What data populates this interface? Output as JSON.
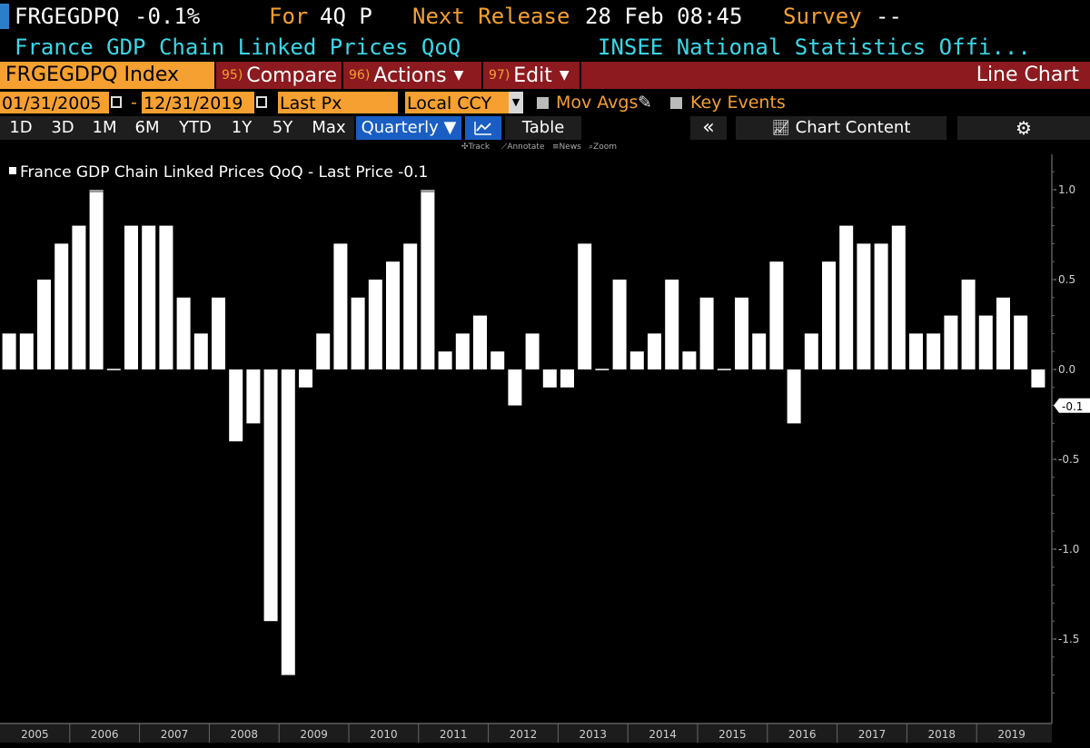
{
  "header": {
    "ticker": "FRGEGDPQ",
    "last_change": "-0.1%",
    "for_label": "For",
    "period": "4Q P",
    "next_release_label": "Next Release",
    "next_release": "28 Feb 08:45",
    "survey_label": "Survey",
    "survey_value": "--",
    "description": "France GDP Chain Linked Prices QoQ",
    "source": "INSEE National Statistics Offi..."
  },
  "toolbar": {
    "security": "FRGEGDPQ Index",
    "compare_num": "95)",
    "compare_label": "Compare",
    "actions_num": "96)",
    "actions_label": "Actions",
    "edit_num": "97)",
    "edit_label": "Edit",
    "chart_type": "Line Chart"
  },
  "date_row": {
    "start_date": "01/31/2005",
    "end_date": "12/31/2019",
    "separator": "-",
    "field": "Last Px",
    "currency": "Local CCY",
    "mov_avgs": "Mov Avgs",
    "key_events": "Key Events"
  },
  "period_bar": {
    "ranges": [
      "1D",
      "3D",
      "1M",
      "6M",
      "YTD",
      "1Y",
      "5Y",
      "Max"
    ],
    "frequency": "Quarterly",
    "table_label": "Table",
    "collapse_symbol": "«",
    "chart_content_label": "Chart Content"
  },
  "sub_tools": {
    "track": "Track",
    "annotate": "Annotate",
    "news": "News",
    "zoom": "Zoom"
  },
  "legend": {
    "label": "France GDP Chain Linked Prices QoQ - Last Price -0.1"
  },
  "colors": {
    "background": "#000000",
    "bar": "#ffffff",
    "accent_orange": "#f5a030",
    "accent_cyan": "#3ad8e8",
    "toolbar_red": "#8c1a1f",
    "active_blue": "#1a5ec4"
  },
  "chart_data": {
    "type": "bar",
    "title": "France GDP Chain Linked Prices QoQ",
    "series": [
      {
        "name": "France GDP Chain Linked Prices QoQ - Last Price",
        "values": [
          0.2,
          0.2,
          0.5,
          0.7,
          0.8,
          1.0,
          0.0,
          0.8,
          0.8,
          0.8,
          0.4,
          0.2,
          0.4,
          -0.4,
          -0.3,
          -1.4,
          -1.7,
          -0.1,
          0.2,
          0.7,
          0.4,
          0.5,
          0.6,
          0.7,
          1.0,
          0.1,
          0.2,
          0.3,
          0.1,
          -0.2,
          0.2,
          -0.1,
          -0.1,
          0.7,
          0.0,
          0.5,
          0.1,
          0.2,
          0.5,
          0.1,
          0.4,
          0.0,
          0.4,
          0.2,
          0.6,
          -0.3,
          0.2,
          0.6,
          0.8,
          0.7,
          0.7,
          0.8,
          0.2,
          0.2,
          0.3,
          0.5,
          0.3,
          0.4,
          0.3,
          -0.1
        ]
      }
    ],
    "start_year": 2005,
    "periods_per_year": 4,
    "x_tick_labels": [
      "2005",
      "2006",
      "2007",
      "2008",
      "2009",
      "2010",
      "2011",
      "2012",
      "2013",
      "2014",
      "2015",
      "2016",
      "2017",
      "2018",
      "2019"
    ],
    "y_ticks": [
      1.0,
      0.5,
      0.0,
      -0.5,
      -1.0,
      -1.5
    ],
    "y_tick_labels": [
      "1.0",
      "0.5",
      "0.0",
      "-0.5",
      "-1.0",
      "-1.5"
    ],
    "last_value_label": "-0.1",
    "ylim": [
      -1.9,
      1.2
    ],
    "grid": false,
    "legend_position": "top-left"
  }
}
